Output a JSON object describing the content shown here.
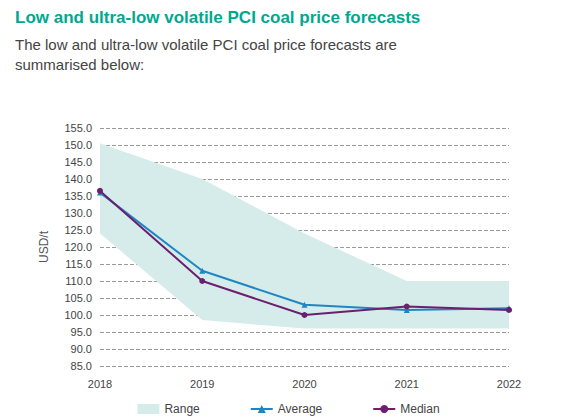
{
  "chart_data": {
    "type": "line",
    "title": "Low and ultra-low volatile PCI coal price forecasts",
    "subtitle": "The low and ultra-low volatile PCI coal price forecasts are summarised below:",
    "y_label": "USD/t",
    "categories": [
      "2018",
      "2019",
      "2020",
      "2021",
      "2022"
    ],
    "series": [
      {
        "name": "Range",
        "type": "range",
        "color": "#d6ecea",
        "low": [
          124,
          98.5,
          96,
          96,
          96
        ],
        "high": [
          150.5,
          140,
          124,
          110,
          110
        ]
      },
      {
        "name": "Average",
        "type": "line",
        "color": "#1f86c4",
        "marker": "triangle",
        "line_style": "solid",
        "values": [
          136,
          113,
          103,
          101.5,
          102
        ]
      },
      {
        "name": "Median",
        "type": "line",
        "color": "#6b1f6e",
        "marker": "circle",
        "line_style": "solid",
        "values": [
          136.5,
          110,
          100,
          102.5,
          101.5
        ]
      }
    ],
    "ylim": [
      85,
      155
    ],
    "yticks": [
      {
        "value": 85,
        "label": "85.0"
      },
      {
        "value": 90,
        "label": "90.0"
      },
      {
        "value": 95,
        "label": "95.0"
      },
      {
        "value": 100,
        "label": "100.0"
      },
      {
        "value": 105,
        "label": "105.0"
      },
      {
        "value": 110,
        "label": "110.0"
      },
      {
        "value": 115,
        "label": "115.0"
      },
      {
        "value": 120,
        "label": "120.0"
      },
      {
        "value": 125,
        "label": "125.0"
      },
      {
        "value": 130,
        "label": "130.0"
      },
      {
        "value": 135,
        "label": "135.0"
      },
      {
        "value": 140,
        "label": "140.0"
      },
      {
        "value": 145,
        "label": "145.0"
      },
      {
        "value": 150,
        "label": "150.0"
      },
      {
        "value": 155,
        "label": "155.0"
      }
    ],
    "grid": true,
    "legend": "bottom"
  }
}
